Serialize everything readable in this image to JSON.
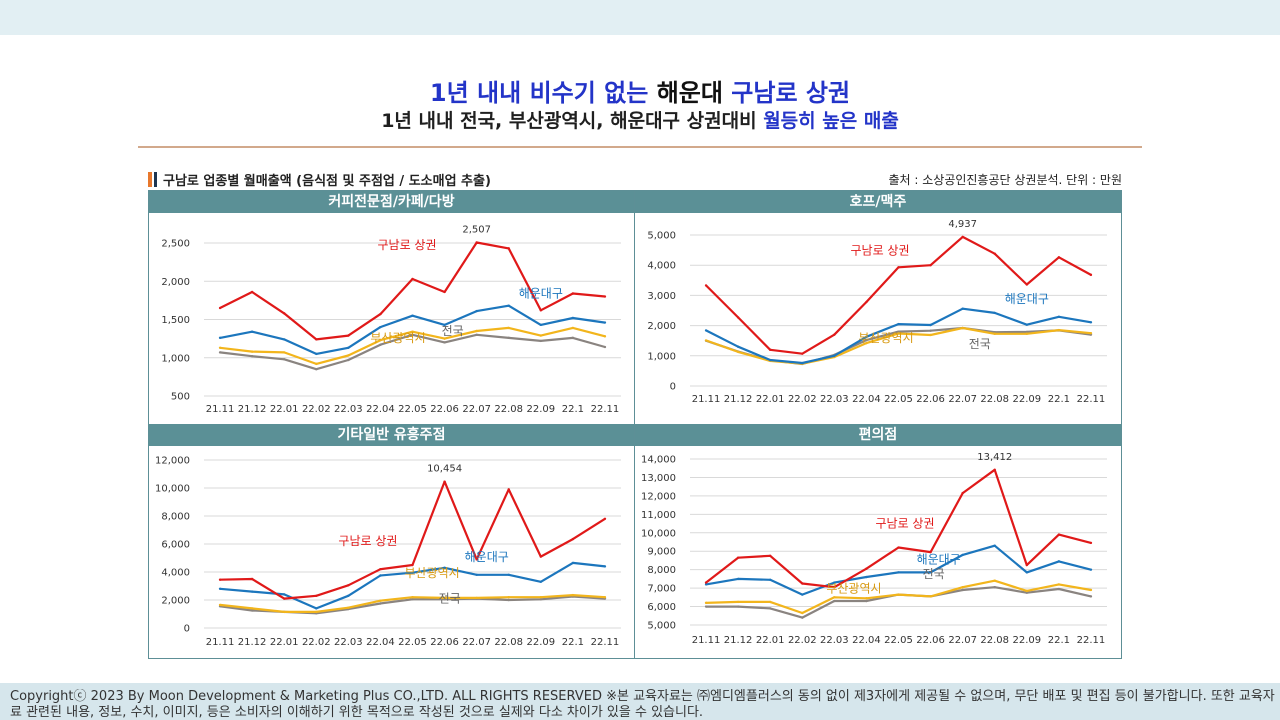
{
  "header": {
    "title_part1": "1년 내내 비수기 없는 ",
    "title_part2": "해운대 ",
    "title_part3": "구남로 상권",
    "subtitle_part1": "1년 내내 전국, 부산광역시, 해운대구 상권대비 ",
    "subtitle_part2": "월등히 높은 매출"
  },
  "section": {
    "title": "구남로 업종별 월매출액 (음식점 및 주점업 / 도소매업 추출)",
    "source": "출처 : 소상공인진흥공단 상권분석. 단위 : 만원"
  },
  "colors": {
    "gunamro": "#e01919",
    "haeundae": "#1c76bd",
    "busan": "#f2b51c",
    "national": "#8a8480",
    "header_bg": "#5b9096",
    "title_blue": "#2334c8"
  },
  "chart_data": [
    {
      "type": "line",
      "title": "커피전문점/카페/다방",
      "categories": [
        "21.11",
        "21.12",
        "22.01",
        "22.02",
        "22.03",
        "22.04",
        "22.05",
        "22.06",
        "22.07",
        "22.08",
        "22.09",
        "22.1",
        "22.11"
      ],
      "ylim": [
        500,
        2500
      ],
      "yticks": [
        "500",
        "1,000",
        "1,500",
        "2,000",
        "2,500"
      ],
      "ytick_values": [
        500,
        1000,
        1500,
        2000,
        2500
      ],
      "peak_label": "2,507",
      "peak_index": 8,
      "series": [
        {
          "name": "구남로 상권",
          "key": "gunamro",
          "values": [
            1650,
            1860,
            1580,
            1240,
            1290,
            1570,
            2030,
            1860,
            2507,
            2430,
            1620,
            1840,
            1800
          ]
        },
        {
          "name": "해운대구",
          "key": "haeundae",
          "values": [
            1260,
            1340,
            1240,
            1050,
            1130,
            1400,
            1550,
            1430,
            1610,
            1680,
            1430,
            1520,
            1460
          ]
        },
        {
          "name": "부산광역시",
          "key": "busan",
          "values": [
            1130,
            1080,
            1070,
            920,
            1030,
            1230,
            1340,
            1250,
            1350,
            1390,
            1290,
            1390,
            1280
          ]
        },
        {
          "name": "전국",
          "key": "national",
          "values": [
            1070,
            1020,
            980,
            850,
            970,
            1170,
            1300,
            1200,
            1300,
            1260,
            1220,
            1260,
            1140
          ]
        }
      ]
    },
    {
      "type": "line",
      "title": "호프/맥주",
      "categories": [
        "21.11",
        "21.12",
        "22.01",
        "22.02",
        "22.03",
        "22.04",
        "22.05",
        "22.06",
        "22.07",
        "22.08",
        "22.09",
        "22.1",
        "22.11"
      ],
      "ylim": [
        0,
        5000
      ],
      "yticks": [
        "0",
        "1,000",
        "2,000",
        "3,000",
        "4,000",
        "5,000"
      ],
      "ytick_values": [
        0,
        1000,
        2000,
        3000,
        4000,
        5000
      ],
      "peak_label": "4,937",
      "peak_index": 8,
      "series": [
        {
          "name": "구남로 상권",
          "key": "gunamro",
          "values": [
            3330,
            2270,
            1200,
            1070,
            1700,
            2780,
            3930,
            4000,
            4937,
            4380,
            3360,
            4260,
            3680
          ]
        },
        {
          "name": "해운대구",
          "key": "haeundae",
          "values": [
            1840,
            1300,
            860,
            760,
            1000,
            1630,
            2050,
            2020,
            2560,
            2420,
            2030,
            2290,
            2110
          ]
        },
        {
          "name": "부산광역시",
          "key": "busan",
          "values": [
            1510,
            1130,
            830,
            740,
            960,
            1420,
            1740,
            1690,
            1920,
            1730,
            1730,
            1850,
            1750
          ]
        },
        {
          "name": "전국",
          "key": "national",
          "values": [
            1500,
            1140,
            850,
            730,
            1030,
            1520,
            1800,
            1830,
            1920,
            1780,
            1790,
            1840,
            1700
          ]
        }
      ]
    },
    {
      "type": "line",
      "title": "기타일반 유흥주점",
      "categories": [
        "21.11",
        "21.12",
        "22.01",
        "22.02",
        "22.03",
        "22.04",
        "22.05",
        "22.06",
        "22.07",
        "22.08",
        "22.09",
        "22.1",
        "22.11"
      ],
      "ylim": [
        0,
        12000
      ],
      "yticks": [
        "0",
        "2,000",
        "4,000",
        "6,000",
        "8,000",
        "10,000",
        "12,000"
      ],
      "ytick_values": [
        0,
        2000,
        4000,
        6000,
        8000,
        10000,
        12000
      ],
      "peak_label": "10,454",
      "peak_index": 7,
      "series": [
        {
          "name": "구남로 상권",
          "key": "gunamro",
          "values": [
            3450,
            3500,
            2100,
            2300,
            3050,
            4200,
            4500,
            10454,
            4900,
            9900,
            5100,
            6350,
            7800
          ]
        },
        {
          "name": "해운대구",
          "key": "haeundae",
          "values": [
            2800,
            2600,
            2400,
            1400,
            2300,
            3750,
            3950,
            4300,
            3800,
            3800,
            3300,
            4650,
            4400
          ]
        },
        {
          "name": "부산광역시",
          "key": "busan",
          "values": [
            1650,
            1400,
            1150,
            1150,
            1450,
            1950,
            2200,
            2150,
            2150,
            2200,
            2200,
            2350,
            2200
          ]
        },
        {
          "name": "전국",
          "key": "national",
          "values": [
            1550,
            1250,
            1150,
            1050,
            1350,
            1750,
            2050,
            2050,
            2100,
            2000,
            2050,
            2250,
            2100
          ]
        }
      ]
    },
    {
      "type": "line",
      "title": "편의점",
      "categories": [
        "21.11",
        "21.12",
        "22.01",
        "22.02",
        "22.03",
        "22.04",
        "22.05",
        "22.06",
        "22.07",
        "22.08",
        "22.09",
        "22.1",
        "22.11"
      ],
      "ylim": [
        5000,
        14000
      ],
      "yticks": [
        "5,000",
        "6,000",
        "7,000",
        "8,000",
        "9,000",
        "10,000",
        "11,000",
        "12,000",
        "13,000",
        "14,000"
      ],
      "ytick_values": [
        5000,
        6000,
        7000,
        8000,
        9000,
        10000,
        11000,
        12000,
        13000,
        14000
      ],
      "peak_label": "13,412",
      "peak_index": 9,
      "series": [
        {
          "name": "구남로 상권",
          "key": "gunamro",
          "values": [
            7300,
            8650,
            8750,
            7250,
            7050,
            8050,
            9200,
            8950,
            12150,
            13412,
            8250,
            9900,
            9450
          ]
        },
        {
          "name": "해운대구",
          "key": "haeundae",
          "values": [
            7200,
            7500,
            7450,
            6650,
            7300,
            7600,
            7850,
            7850,
            8800,
            9300,
            7850,
            8450,
            8000
          ]
        },
        {
          "name": "부산광역시",
          "key": "busan",
          "values": [
            6200,
            6250,
            6250,
            5650,
            6500,
            6450,
            6650,
            6550,
            7050,
            7400,
            6850,
            7200,
            6900
          ]
        },
        {
          "name": "전국",
          "key": "national",
          "values": [
            6000,
            6000,
            5900,
            5400,
            6300,
            6300,
            6650,
            6550,
            6900,
            7050,
            6750,
            6950,
            6550
          ]
        }
      ]
    }
  ],
  "footer": {
    "text": "Copyrightⓒ 2023 By Moon Development & Marketing Plus CO.,LTD. ALL RIGHTS RESERVED ※본 교육자료는 ㈜엠디엠플러스의 동의 없이 제3자에게 제공될 수 없으며, 무단 배포 및 편집 등이 불가합니다. 또한 교육자료 관련된 내용, 정보, 수치, 이미지, 등은 소비자의 이해하기 위한 목적으로 작성된 것으로 실제와 다소 차이가 있을 수 있습니다."
  }
}
